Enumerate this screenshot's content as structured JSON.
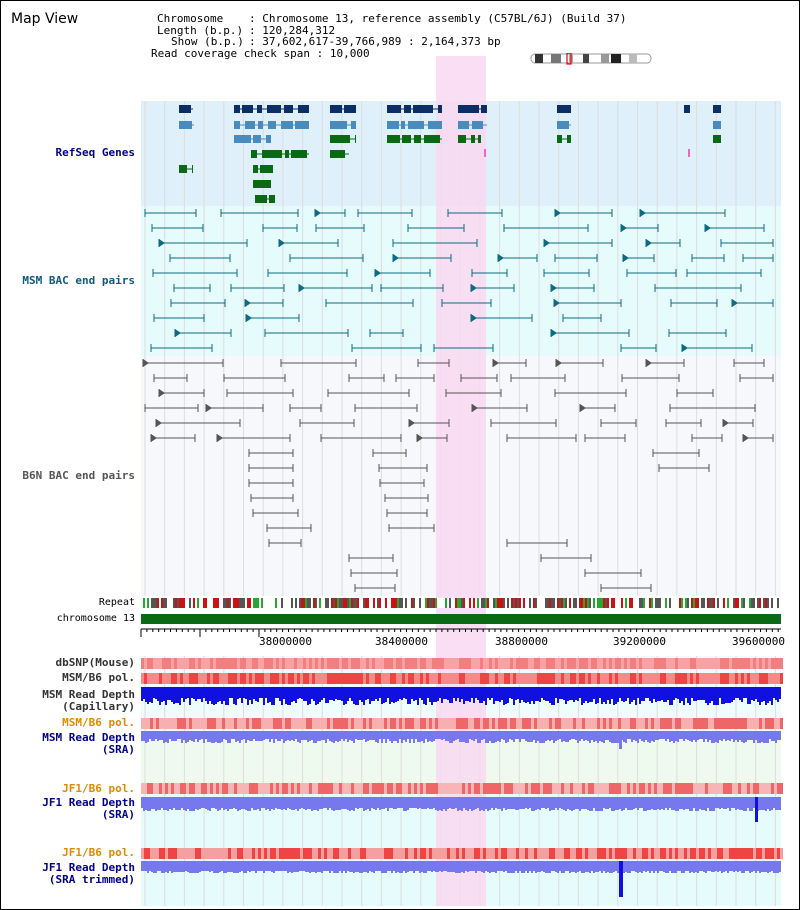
{
  "title": "Map View",
  "info": {
    "chromosome_label": "Chromosome",
    "chromosome_value": "Chromosome 13, reference assembly (C57BL/6J) (Build 37)",
    "length_label": "Length (b.p.)",
    "length_value": "120,284,312",
    "show_label": "Show (b.p.)",
    "show_value": "37,602,617-39,766,989 : 2,164,373 bp",
    "coverage_label": "Read coverage check span",
    "coverage_value": "10,000"
  },
  "tracks": {
    "refseq": "RefSeq Genes",
    "msm_bac": "MSM BAC end pairs",
    "b6n_bac": "B6N BAC end pairs",
    "repeat": "Repeat",
    "chromosome": "chromosome 13",
    "dbsnp": "dbSNP(Mouse)",
    "msm_b6_pol": "MSM/B6 pol.",
    "msm_read_depth_cap_1": "MSM Read Depth",
    "msm_read_depth_cap_2": "(Capillary)",
    "msm_b6_pol_2": "MSM/B6 pol.",
    "msm_read_depth_sra_1": "MSM Read Depth",
    "msm_read_depth_sra_2": "(SRA)",
    "jf1_b6_pol": "JF1/B6 pol.",
    "jf1_read_depth_sra_1": "JF1 Read Depth",
    "jf1_read_depth_sra_2": "(SRA)",
    "jf1_b6_pol_2": "JF1/B6 pol.",
    "jf1_read_depth_trim_1": "JF1 Read Depth",
    "jf1_read_depth_trim_2": "(SRA trimmed)"
  },
  "axis": {
    "ticks": [
      "38000000",
      "38400000",
      "38800000",
      "39200000",
      "39600000"
    ]
  },
  "colors": {
    "refseq_bg": "#dff0fa",
    "msm_bg": "#e6fbfb",
    "highlight": "#f9d8f1",
    "gene_dark": "#0b2e66",
    "gene_mid": "#4a8bbd",
    "gene_green": "#0a6a14",
    "msm_feature": "#0e6a80",
    "b6n_feature": "#555555",
    "chromosome_bar": "#0a6a14",
    "depth_dark": "#1010e0",
    "depth_light": "#7777ee"
  }
}
